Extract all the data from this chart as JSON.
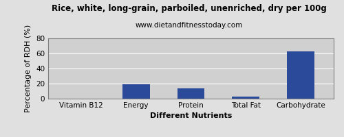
{
  "title": "Rice, white, long-grain, parboiled, unenriched, dry per 100g",
  "subtitle": "www.dietandfitnesstoday.com",
  "xlabel": "Different Nutrients",
  "ylabel": "Percentage of RDH (%)",
  "categories": [
    "Vitamin B12",
    "Energy",
    "Protein",
    "Total Fat",
    "Carbohydrate"
  ],
  "values": [
    0,
    19.5,
    13.5,
    2.5,
    62.5
  ],
  "bar_color": "#2b4b9a",
  "ylim": [
    0,
    80
  ],
  "yticks": [
    0,
    20,
    40,
    60,
    80
  ],
  "background_color": "#e0e0e0",
  "plot_bg_color": "#d0d0d0",
  "title_fontsize": 8.5,
  "subtitle_fontsize": 7.5,
  "axis_label_fontsize": 8,
  "tick_fontsize": 7.5
}
